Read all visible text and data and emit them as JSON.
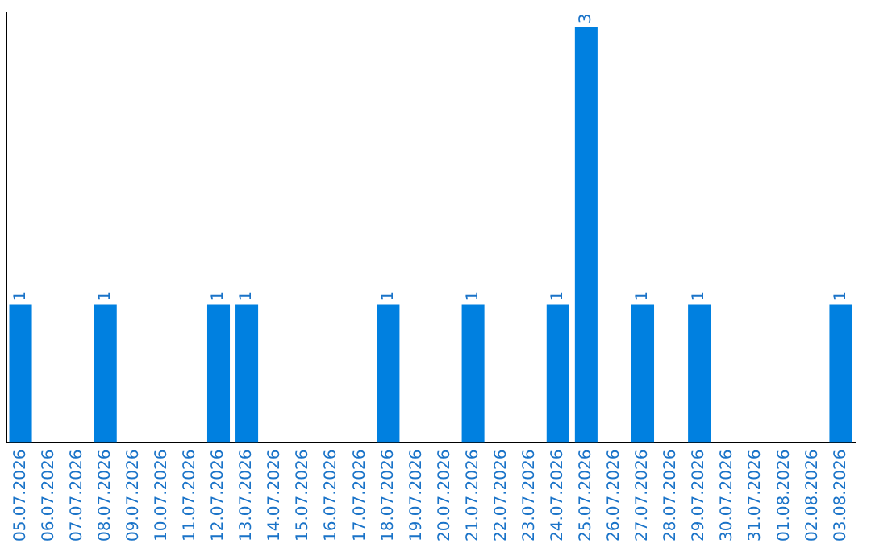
{
  "chart_data": {
    "type": "bar",
    "categories": [
      "05.07.2026",
      "06.07.2026",
      "07.07.2026",
      "08.07.2026",
      "09.07.2026",
      "10.07.2026",
      "11.07.2026",
      "12.07.2026",
      "13.07.2026",
      "14.07.2026",
      "15.07.2026",
      "16.07.2026",
      "17.07.2026",
      "18.07.2026",
      "19.07.2026",
      "20.07.2026",
      "21.07.2026",
      "22.07.2026",
      "23.07.2026",
      "24.07.2026",
      "25.07.2026",
      "26.07.2026",
      "27.07.2026",
      "28.07.2026",
      "29.07.2026",
      "30.07.2026",
      "31.07.2026",
      "01.08.2026",
      "02.08.2026",
      "03.08.2026"
    ],
    "values": [
      1,
      0,
      0,
      1,
      0,
      0,
      0,
      1,
      1,
      0,
      0,
      0,
      0,
      1,
      0,
      0,
      1,
      0,
      0,
      1,
      3,
      0,
      1,
      0,
      1,
      0,
      0,
      0,
      0,
      1
    ],
    "value_labels": [
      "1",
      null,
      null,
      "1",
      null,
      null,
      null,
      "1",
      "1",
      null,
      null,
      null,
      null,
      "1",
      null,
      null,
      "1",
      null,
      null,
      "1",
      "3",
      null,
      "1",
      null,
      "1",
      null,
      null,
      null,
      null,
      "1"
    ],
    "color": "#0080e0",
    "ylim": [
      0,
      3.1
    ],
    "tick_labels": "x",
    "grid": false,
    "legend": false
  }
}
